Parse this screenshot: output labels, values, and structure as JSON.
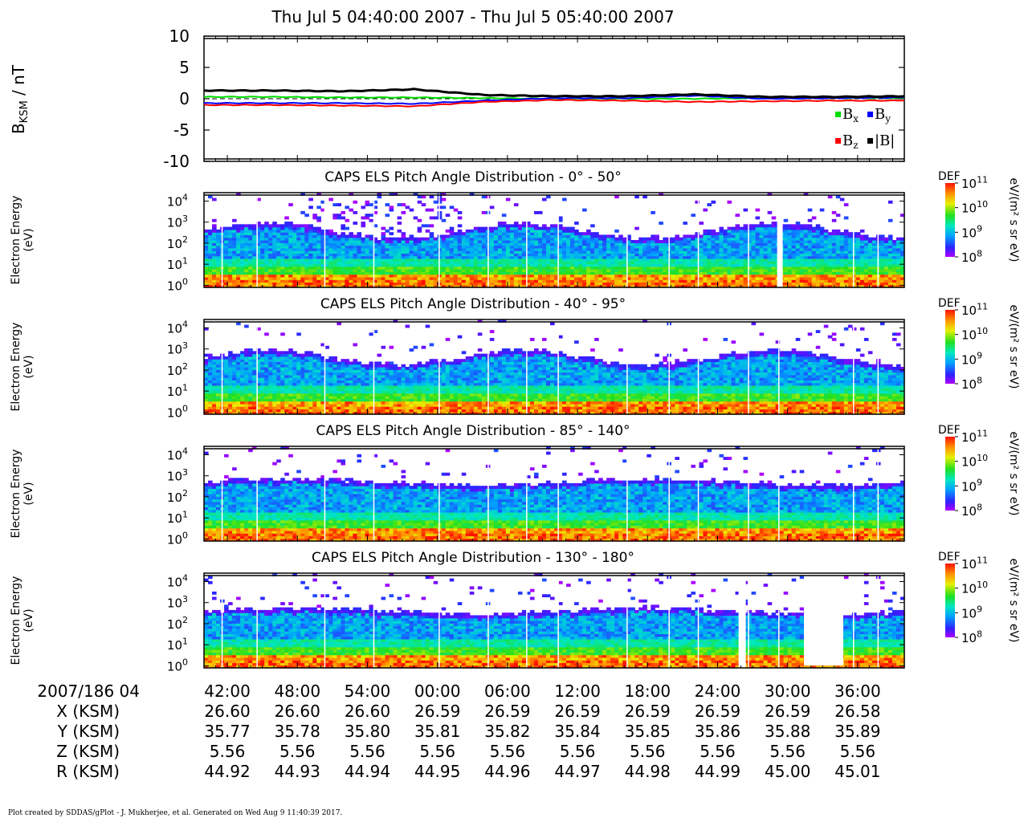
{
  "title": "Thu Jul 5 04:40:00 2007 - Thu Jul 5 05:40:00 2007",
  "footer": "Plot created by SDDAS/gPlot - J. Mukherjee, et al.  Generated on Wed Aug 9 11:40:39 2017.",
  "chart_data": [
    {
      "type": "line",
      "ylabel_main": "B",
      "ylabel_sub": "KSM",
      "ylabel_unit": " / nT",
      "ylim": [
        -10,
        10
      ],
      "yticks": [
        "10",
        "5",
        "0",
        "-5",
        "-10"
      ],
      "x": [
        "04:40",
        "04:46",
        "04:52",
        "04:58",
        "05:04",
        "05:10",
        "05:16",
        "05:22",
        "05:28",
        "05:34",
        "05:40"
      ],
      "series": [
        {
          "name": "Bx",
          "color": "#00dd00",
          "values": [
            0.3,
            0.3,
            0.2,
            0.2,
            0.1,
            0.0,
            0.0,
            0.0,
            0.1,
            0.1,
            0.1
          ]
        },
        {
          "name": "By",
          "color": "#0000ff",
          "values": [
            -0.7,
            -0.7,
            -0.7,
            -0.8,
            -0.3,
            0.1,
            0.1,
            0.5,
            0.0,
            0.1,
            0.2
          ]
        },
        {
          "name": "Bz",
          "color": "#ff0000",
          "values": [
            -1.0,
            -1.0,
            -1.1,
            -1.2,
            -0.5,
            -0.2,
            -0.3,
            -0.5,
            -0.4,
            -0.3,
            -0.3
          ]
        },
        {
          "name": "|B|",
          "color": "#000000",
          "values": [
            1.3,
            1.3,
            1.2,
            1.5,
            0.6,
            0.4,
            0.4,
            0.7,
            0.3,
            0.3,
            0.4
          ]
        }
      ],
      "legend": [
        {
          "base": "B",
          "sub": "x",
          "color": "#00dd00"
        },
        {
          "base": "B",
          "sub": "y",
          "color": "#0000ff"
        },
        {
          "base": "B",
          "sub": "z",
          "color": "#ff0000"
        },
        {
          "base": "|B|",
          "sub": "",
          "color": "#000000"
        }
      ],
      "zero_line": "dashed"
    },
    {
      "type": "heatmap",
      "title": "CAPS ELS Pitch Angle Distribution - 0° - 50°",
      "ylabel": [
        "Electron Energy",
        "(eV)"
      ],
      "ylim_log10": [
        -0.1,
        4.4
      ],
      "colorbar_label": "DEF",
      "colorbar_unit": "eV/(m² s sr eV)",
      "colorbar_log10_range": [
        8,
        11
      ]
    },
    {
      "type": "heatmap",
      "title": "CAPS ELS Pitch Angle Distribution - 40° - 95°",
      "ylabel": [
        "Electron Energy",
        "(eV)"
      ],
      "ylim_log10": [
        -0.1,
        4.4
      ],
      "colorbar_label": "DEF",
      "colorbar_unit": "eV/(m² s sr eV)",
      "colorbar_log10_range": [
        8,
        11
      ]
    },
    {
      "type": "heatmap",
      "title": "CAPS ELS Pitch Angle Distribution - 85° - 140°",
      "ylabel": [
        "Electron Energy",
        "(eV)"
      ],
      "ylim_log10": [
        -0.1,
        4.4
      ],
      "colorbar_label": "DEF",
      "colorbar_unit": "eV/(m² s sr eV)",
      "colorbar_log10_range": [
        8,
        11
      ]
    },
    {
      "type": "heatmap",
      "title": "CAPS ELS Pitch Angle Distribution - 130° - 180°",
      "ylabel": [
        "Electron Energy",
        "(eV)"
      ],
      "ylim_log10": [
        -0.1,
        4.4
      ],
      "colorbar_label": "DEF",
      "colorbar_unit": "eV/(m² s sr eV)",
      "colorbar_log10_range": [
        8,
        11
      ]
    }
  ],
  "energy_ticks": [
    {
      "base": "10",
      "exp": "4"
    },
    {
      "base": "10",
      "exp": "3"
    },
    {
      "base": "10",
      "exp": "2"
    },
    {
      "base": "10",
      "exp": "1"
    },
    {
      "base": "10",
      "exp": "0"
    }
  ],
  "colorbar_ticks": [
    {
      "base": "10",
      "exp": "11"
    },
    {
      "base": "10",
      "exp": "10"
    },
    {
      "base": "10",
      "exp": "9"
    },
    {
      "base": "10",
      "exp": "8"
    }
  ],
  "time_axis": {
    "start_label": "2007/186 04",
    "rows": [
      {
        "label": "X (KSM)",
        "values": [
          "26.60",
          "26.60",
          "26.60",
          "26.59",
          "26.59",
          "26.59",
          "26.59",
          "26.59",
          "26.59",
          "26.58"
        ]
      },
      {
        "label": "Y (KSM)",
        "values": [
          "35.77",
          "35.78",
          "35.80",
          "35.81",
          "35.82",
          "35.84",
          "35.85",
          "35.86",
          "35.88",
          "35.89"
        ]
      },
      {
        "label": "Z (KSM)",
        "values": [
          "5.56",
          "5.56",
          "5.56",
          "5.56",
          "5.56",
          "5.56",
          "5.56",
          "5.56",
          "5.56",
          "5.56"
        ]
      },
      {
        "label": "R (KSM)",
        "values": [
          "44.92",
          "44.93",
          "44.94",
          "44.95",
          "44.96",
          "44.97",
          "44.98",
          "44.99",
          "45.00",
          "45.01"
        ]
      }
    ],
    "times": [
      "42:00",
      "48:00",
      "54:00",
      "00:00",
      "06:00",
      "12:00",
      "18:00",
      "24:00",
      "30:00",
      "36:00"
    ],
    "time_minutes": [
      2,
      8,
      14,
      20,
      26,
      32,
      38,
      44,
      50,
      56
    ],
    "total_minutes": 60
  }
}
